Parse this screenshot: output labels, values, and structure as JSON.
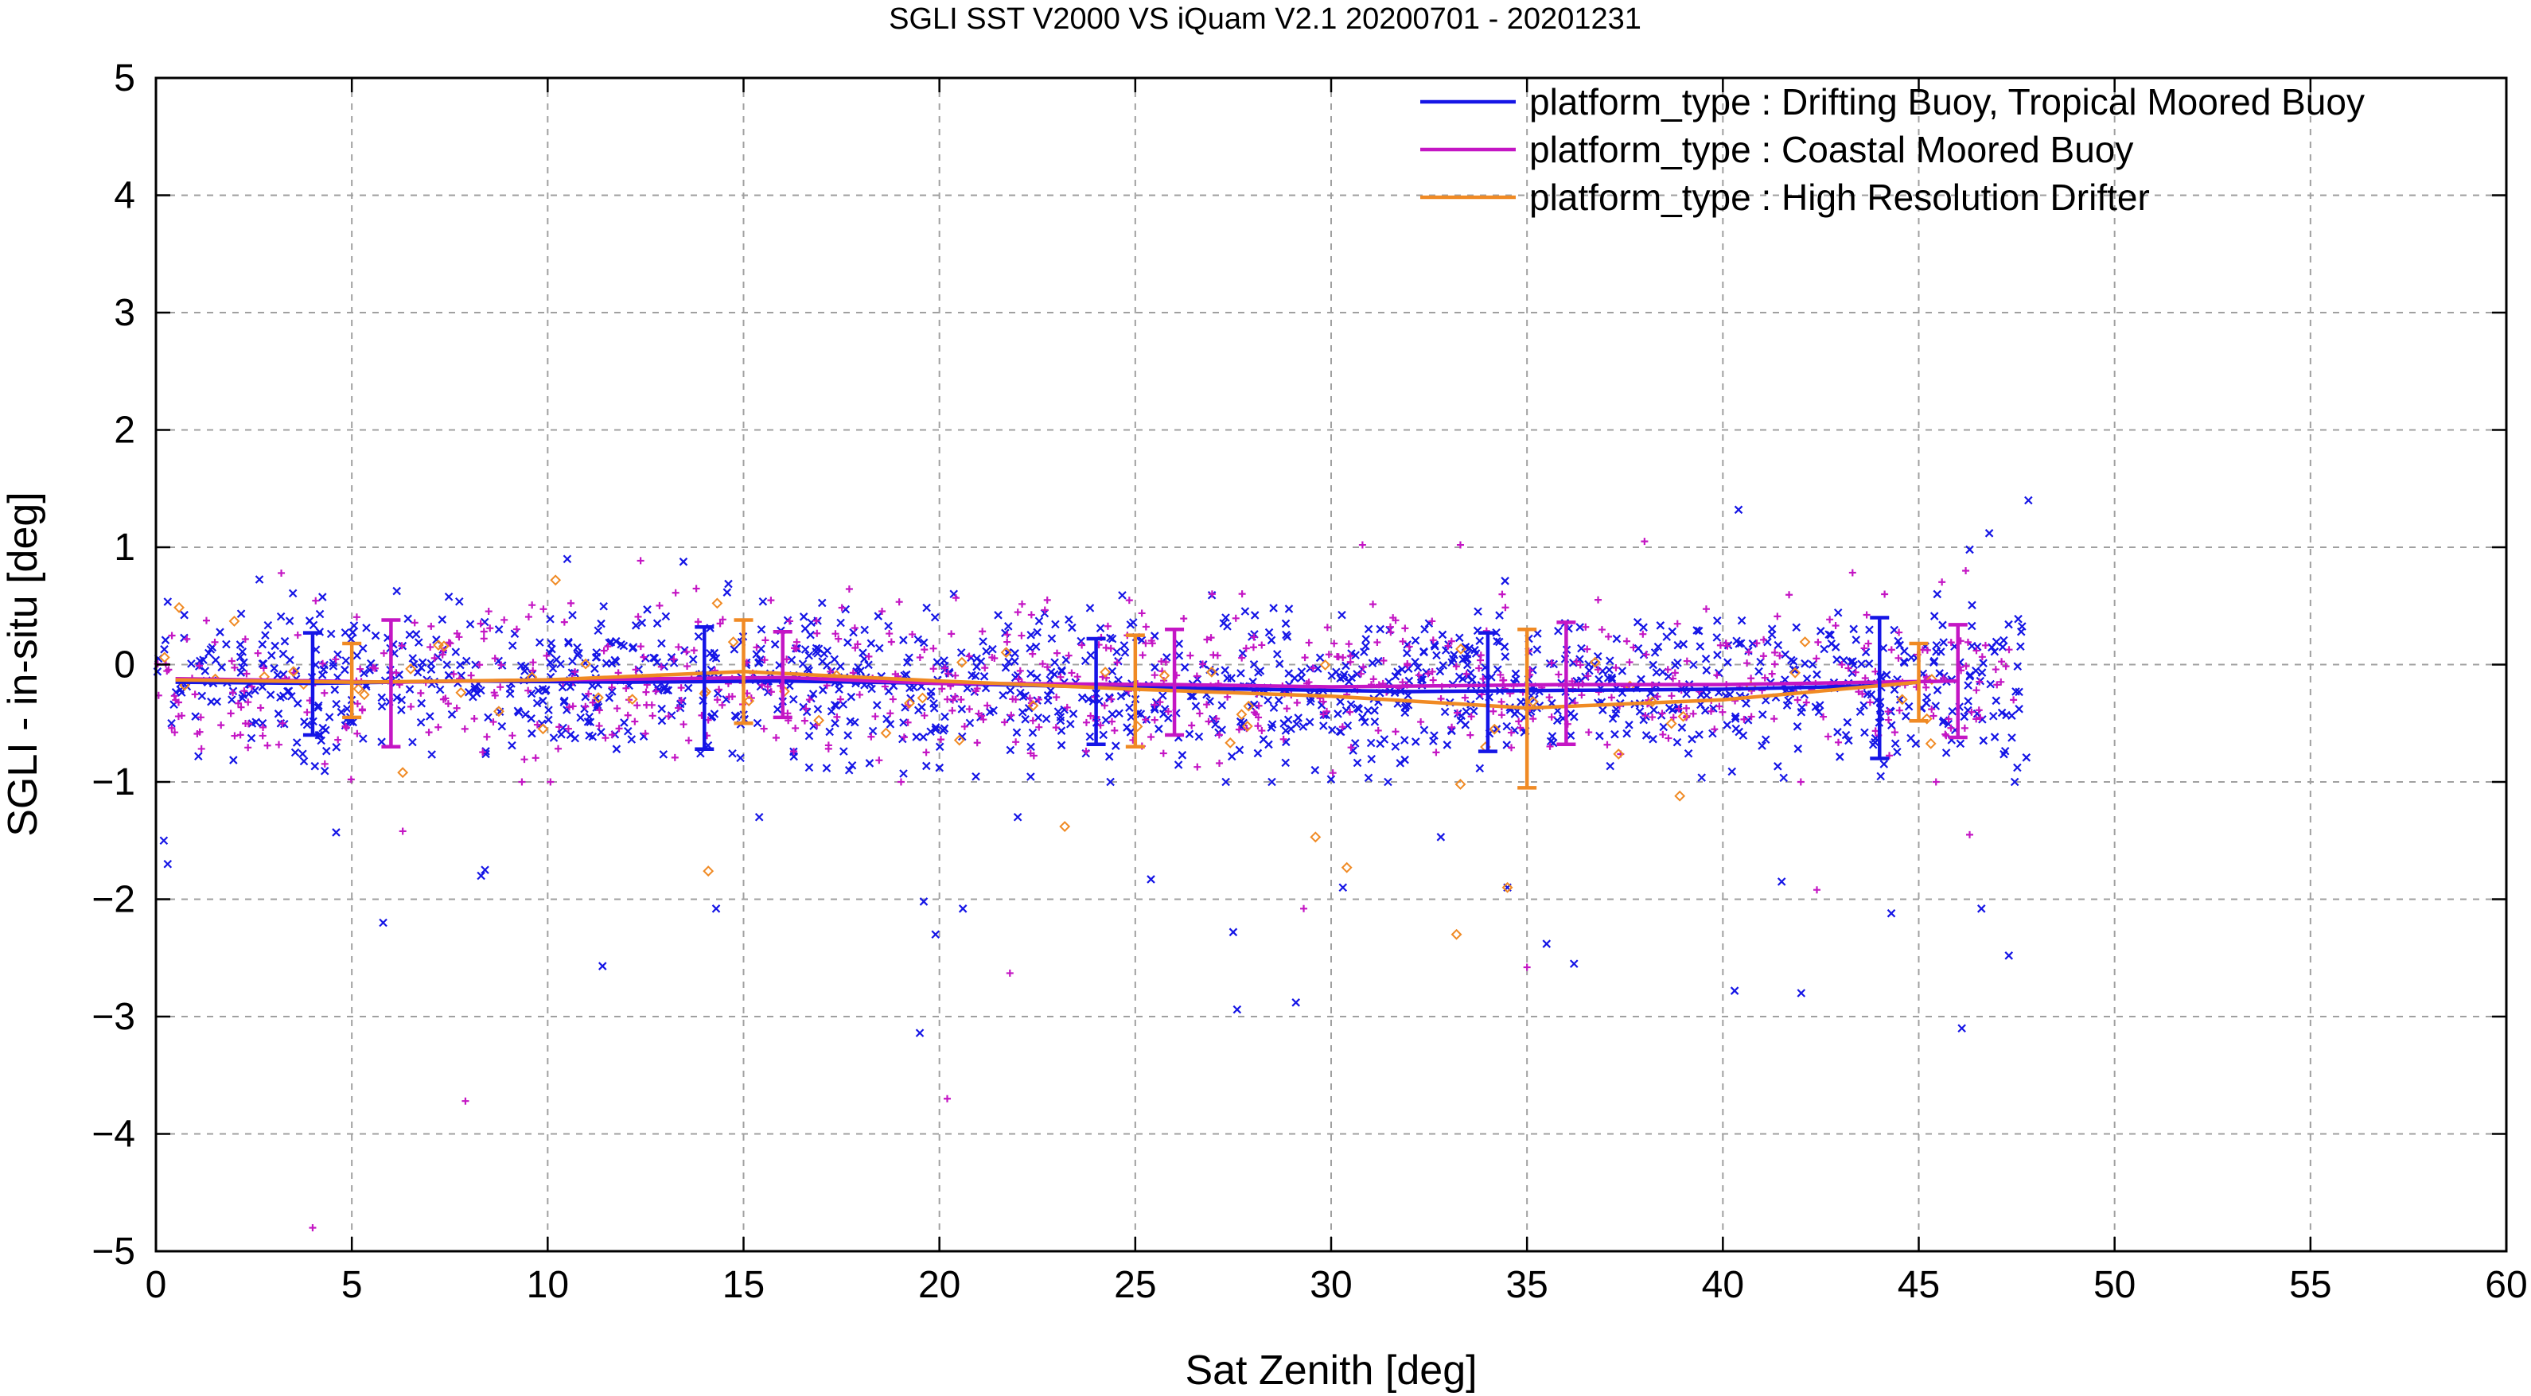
{
  "chart_data": {
    "type": "scatter",
    "title": "SGLI SST V2000 VS iQuam V2.1 20200701 - 20201231",
    "xlabel": "Sat Zenith [deg]",
    "ylabel": "SGLI - in-situ [deg]",
    "xlim": [
      0,
      60
    ],
    "ylim": [
      -5,
      5
    ],
    "xticks": [
      0,
      5,
      10,
      15,
      20,
      25,
      30,
      35,
      40,
      45,
      50,
      55,
      60
    ],
    "yticks": [
      -5,
      -4,
      -3,
      -2,
      -1,
      0,
      1,
      2,
      3,
      4,
      5
    ],
    "xtick_labels": [
      "0",
      "5",
      "10",
      "15",
      "20",
      "25",
      "30",
      "35",
      "40",
      "45",
      "50",
      "55",
      "60"
    ],
    "ytick_labels": [
      "−5",
      "−4",
      "−3",
      "−2",
      "−1",
      "0",
      "1",
      "2",
      "3",
      "4",
      "5"
    ],
    "grid": true,
    "legend_position": "top-right",
    "series": [
      {
        "name": "platform_type : Drifting Buoy, Tropical Moored Buoy",
        "color": "#1515e6",
        "marker": "x",
        "scatter_spread": 0.33,
        "scatter_x_range": [
          0,
          47.8
        ],
        "mean_line": {
          "x": [
            0.5,
            4,
            8,
            12,
            16,
            20,
            24,
            28,
            32,
            36,
            40,
            44,
            45
          ],
          "y": [
            -0.15,
            -0.16,
            -0.14,
            -0.15,
            -0.14,
            -0.16,
            -0.19,
            -0.21,
            -0.23,
            -0.22,
            -0.21,
            -0.18,
            -0.15
          ]
        },
        "error_bars": [
          {
            "x": 4,
            "y": -0.16,
            "lo": -0.6,
            "hi": 0.27
          },
          {
            "x": 14,
            "y": -0.15,
            "lo": -0.72,
            "hi": 0.32
          },
          {
            "x": 24,
            "y": -0.19,
            "lo": -0.68,
            "hi": 0.22
          },
          {
            "x": 34,
            "y": -0.22,
            "lo": -0.74,
            "hi": 0.27
          },
          {
            "x": 44,
            "y": -0.18,
            "lo": -0.8,
            "hi": 0.4
          }
        ],
        "outliers": [
          {
            "x": 0.2,
            "y": -1.5
          },
          {
            "x": 0.3,
            "y": -1.7
          },
          {
            "x": 4.6,
            "y": -1.43
          },
          {
            "x": 5.8,
            "y": -2.2
          },
          {
            "x": 8.3,
            "y": -1.8
          },
          {
            "x": 8.4,
            "y": -1.75
          },
          {
            "x": 11.4,
            "y": -2.57
          },
          {
            "x": 14.3,
            "y": -2.08
          },
          {
            "x": 15.4,
            "y": -1.3
          },
          {
            "x": 19.6,
            "y": -2.02
          },
          {
            "x": 19.5,
            "y": -3.14
          },
          {
            "x": 19.9,
            "y": -2.3
          },
          {
            "x": 20.6,
            "y": -2.08
          },
          {
            "x": 22.0,
            "y": -1.3
          },
          {
            "x": 25.4,
            "y": -1.83
          },
          {
            "x": 27.5,
            "y": -2.28
          },
          {
            "x": 27.6,
            "y": -2.94
          },
          {
            "x": 29.1,
            "y": -2.88
          },
          {
            "x": 30.3,
            "y": -1.9
          },
          {
            "x": 32.8,
            "y": -1.47
          },
          {
            "x": 34.5,
            "y": -1.9
          },
          {
            "x": 35.5,
            "y": -2.38
          },
          {
            "x": 36.2,
            "y": -2.55
          },
          {
            "x": 40.3,
            "y": -2.78
          },
          {
            "x": 42.0,
            "y": -2.8
          },
          {
            "x": 41.5,
            "y": -1.85
          },
          {
            "x": 44.3,
            "y": -2.12
          },
          {
            "x": 46.1,
            "y": -3.1
          },
          {
            "x": 46.6,
            "y": -2.08
          },
          {
            "x": 47.3,
            "y": -2.48
          },
          {
            "x": 40.4,
            "y": 1.32
          },
          {
            "x": 47.8,
            "y": 1.4
          },
          {
            "x": 46.8,
            "y": 1.12
          },
          {
            "x": 46.3,
            "y": 0.98
          },
          {
            "x": 10.5,
            "y": 0.9
          }
        ]
      },
      {
        "name": "platform_type : Coastal Moored Buoy",
        "color": "#c416c4",
        "marker": "plus",
        "scatter_spread": 0.33,
        "scatter_x_range": [
          0,
          47.5
        ],
        "mean_line": {
          "x": [
            0.5,
            6,
            10,
            16,
            20,
            26,
            30,
            36,
            40,
            46
          ],
          "y": [
            -0.12,
            -0.15,
            -0.13,
            -0.11,
            -0.16,
            -0.17,
            -0.19,
            -0.17,
            -0.17,
            -0.14
          ]
        },
        "error_bars": [
          {
            "x": 6,
            "y": -0.15,
            "lo": -0.7,
            "hi": 0.38
          },
          {
            "x": 16,
            "y": -0.11,
            "lo": -0.45,
            "hi": 0.28
          },
          {
            "x": 26,
            "y": -0.17,
            "lo": -0.6,
            "hi": 0.3
          },
          {
            "x": 36,
            "y": -0.17,
            "lo": -0.68,
            "hi": 0.36
          },
          {
            "x": 46,
            "y": -0.14,
            "lo": -0.62,
            "hi": 0.34
          }
        ],
        "outliers": [
          {
            "x": 4.0,
            "y": -4.8
          },
          {
            "x": 7.9,
            "y": -3.72
          },
          {
            "x": 20.2,
            "y": -3.7
          },
          {
            "x": 21.8,
            "y": -2.63
          },
          {
            "x": 35.0,
            "y": -2.58
          },
          {
            "x": 29.3,
            "y": -2.08
          },
          {
            "x": 42.4,
            "y": -1.92
          },
          {
            "x": 6.3,
            "y": -1.42
          },
          {
            "x": 46.3,
            "y": -1.45
          },
          {
            "x": 33.3,
            "y": 1.02
          },
          {
            "x": 38.0,
            "y": 1.05
          },
          {
            "x": 30.8,
            "y": 1.02
          },
          {
            "x": 46.2,
            "y": 0.8
          },
          {
            "x": 3.2,
            "y": 0.78
          }
        ]
      },
      {
        "name": "platform_type : High Resolution Drifter",
        "color": "#f08a24",
        "marker": "diamond",
        "scatter_spread": 0.3,
        "scatter_x_range": [
          0,
          46
        ],
        "mean_line": {
          "x": [
            0.5,
            5,
            10,
            15,
            20,
            25,
            30,
            35,
            40,
            45
          ],
          "y": [
            -0.13,
            -0.15,
            -0.13,
            -0.06,
            -0.14,
            -0.21,
            -0.27,
            -0.37,
            -0.3,
            -0.15
          ]
        },
        "error_bars": [
          {
            "x": 5,
            "y": -0.15,
            "lo": -0.45,
            "hi": 0.18
          },
          {
            "x": 15,
            "y": -0.06,
            "lo": -0.5,
            "hi": 0.38
          },
          {
            "x": 25,
            "y": -0.21,
            "lo": -0.7,
            "hi": 0.25
          },
          {
            "x": 35,
            "y": -0.37,
            "lo": -1.05,
            "hi": 0.3
          },
          {
            "x": 45,
            "y": -0.15,
            "lo": -0.48,
            "hi": 0.18
          }
        ],
        "outliers": [
          {
            "x": 14.1,
            "y": -1.76
          },
          {
            "x": 23.2,
            "y": -1.38
          },
          {
            "x": 30.4,
            "y": -1.73
          },
          {
            "x": 29.6,
            "y": -1.47
          },
          {
            "x": 33.3,
            "y": -1.02
          },
          {
            "x": 33.2,
            "y": -2.3
          },
          {
            "x": 34.5,
            "y": -1.9
          },
          {
            "x": 38.9,
            "y": -1.12
          },
          {
            "x": 10.2,
            "y": 0.72
          },
          {
            "x": 2.0,
            "y": 0.37
          },
          {
            "x": 6.3,
            "y": -0.92
          }
        ]
      }
    ]
  }
}
